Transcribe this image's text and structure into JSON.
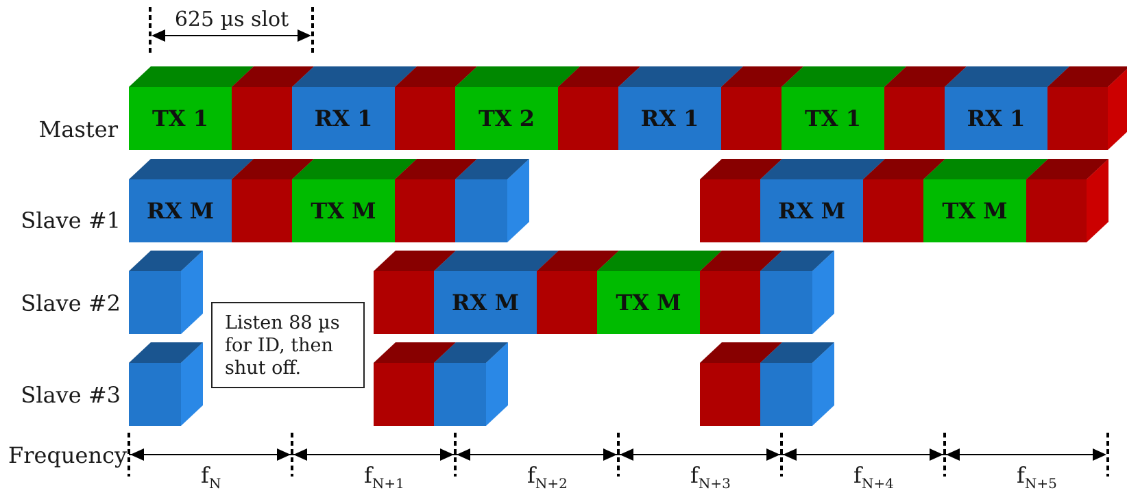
{
  "slot": {
    "label": "625 µs slot"
  },
  "colors": {
    "green": "#00bb00",
    "green_top": "#008800",
    "red": "#b00000",
    "red_top": "#880000",
    "blue": "#2277cc",
    "blue_top": "#1a5590",
    "blue_side": "#2a88e6"
  },
  "rows": [
    {
      "label": "Master",
      "blocks": [
        {
          "color": "green",
          "text": "TX 1"
        },
        {
          "color": "red",
          "text": ""
        },
        {
          "color": "blue",
          "text": "RX 1"
        },
        {
          "color": "red",
          "text": ""
        },
        {
          "color": "green",
          "text": "TX 2"
        },
        {
          "color": "red",
          "text": ""
        },
        {
          "color": "blue",
          "text": "RX 1"
        },
        {
          "color": "red",
          "text": ""
        },
        {
          "color": "green",
          "text": "TX 1"
        },
        {
          "color": "red",
          "text": ""
        },
        {
          "color": "blue",
          "text": "RX 1"
        },
        {
          "color": "red",
          "text": ""
        }
      ]
    },
    {
      "label": "Slave #1",
      "groups": [
        {
          "blocks": [
            {
              "color": "blue",
              "text": "RX M"
            },
            {
              "color": "red",
              "text": ""
            },
            {
              "color": "green",
              "text": "TX M"
            },
            {
              "color": "red",
              "text": ""
            },
            {
              "color": "blue",
              "text": "",
              "short": true
            }
          ]
        },
        {
          "blocks": [
            {
              "color": "red",
              "text": ""
            },
            {
              "color": "blue",
              "text": "RX M"
            },
            {
              "color": "red",
              "text": ""
            },
            {
              "color": "green",
              "text": "TX M"
            },
            {
              "color": "red",
              "text": ""
            }
          ]
        }
      ]
    },
    {
      "label": "Slave #2",
      "groups": [
        {
          "blocks": [
            {
              "color": "blue",
              "text": "",
              "short": true
            }
          ]
        },
        {
          "blocks": [
            {
              "color": "red",
              "text": ""
            },
            {
              "color": "blue",
              "text": "RX M"
            },
            {
              "color": "red",
              "text": ""
            },
            {
              "color": "green",
              "text": "TX M"
            },
            {
              "color": "red",
              "text": ""
            },
            {
              "color": "blue",
              "text": "",
              "short": true
            }
          ]
        }
      ]
    },
    {
      "label": "Slave #3",
      "groups": [
        {
          "blocks": [
            {
              "color": "blue",
              "text": "",
              "short": true
            }
          ]
        },
        {
          "blocks": [
            {
              "color": "red",
              "text": ""
            },
            {
              "color": "blue",
              "text": "",
              "short": true
            }
          ]
        },
        {
          "blocks": [
            {
              "color": "red",
              "text": ""
            },
            {
              "color": "blue",
              "text": "",
              "short": true
            }
          ]
        }
      ]
    }
  ],
  "note": {
    "lines": [
      "Listen 88 µs",
      "for ID, then",
      "shut off."
    ]
  },
  "frequency": {
    "label": "Frequency",
    "hops": [
      {
        "base": "f",
        "sub": "N"
      },
      {
        "base": "f",
        "sub": "N+1"
      },
      {
        "base": "f",
        "sub": "N+2"
      },
      {
        "base": "f",
        "sub": "N+3"
      },
      {
        "base": "f",
        "sub": "N+4"
      },
      {
        "base": "f",
        "sub": "N+5"
      }
    ]
  }
}
